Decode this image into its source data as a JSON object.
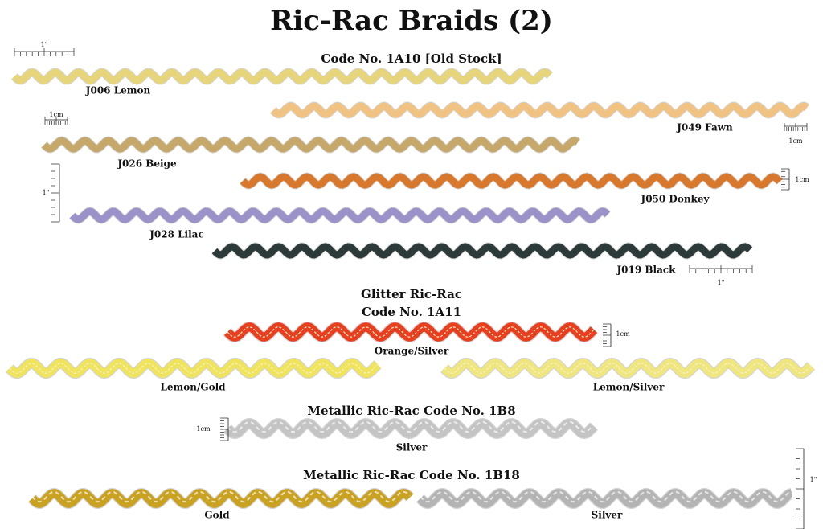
{
  "title": "Ric-Rac Braids (2)",
  "sections": [
    {
      "heading": [
        "Code No.  1A10   [Old Stock]"
      ],
      "items": [
        {
          "label": "J006  Lemon",
          "color": "#e6d57a"
        },
        {
          "label": "J049  Fawn",
          "color": "#f1c383"
        },
        {
          "label": "J026  Beige",
          "color": "#c6a86a"
        },
        {
          "label": "J050  Donkey",
          "color": "#d8782c"
        },
        {
          "label": "J028  Lilac",
          "color": "#9a92c8"
        },
        {
          "label": "J019  Black",
          "color": "#2d3a3a"
        }
      ]
    },
    {
      "heading": [
        "Glitter Ric-Rac",
        "Code No.  1A11"
      ],
      "items": [
        {
          "label": "Orange/Silver",
          "color": "#e8401e"
        },
        {
          "label": "Lemon/Gold",
          "color": "#efe45c"
        },
        {
          "label": "Lemon/Silver",
          "color": "#f0e67e"
        }
      ]
    },
    {
      "heading": [
        "Metallic Ric-Rac   Code No.  1B8"
      ],
      "items": [
        {
          "label": "Silver",
          "color": "#c4c4c4"
        }
      ]
    },
    {
      "heading": [
        "Metallic Ric-Rac   Code No.  1B18"
      ],
      "items": [
        {
          "label": "Gold",
          "color": "#c9a222"
        },
        {
          "label": "Silver",
          "color": "#b4b4b4"
        }
      ]
    }
  ],
  "scale_labels": [
    "1\"",
    "1cm",
    "1cm",
    "1cm",
    "1\"",
    "1\"",
    "1cm",
    "1cm",
    "1\""
  ]
}
